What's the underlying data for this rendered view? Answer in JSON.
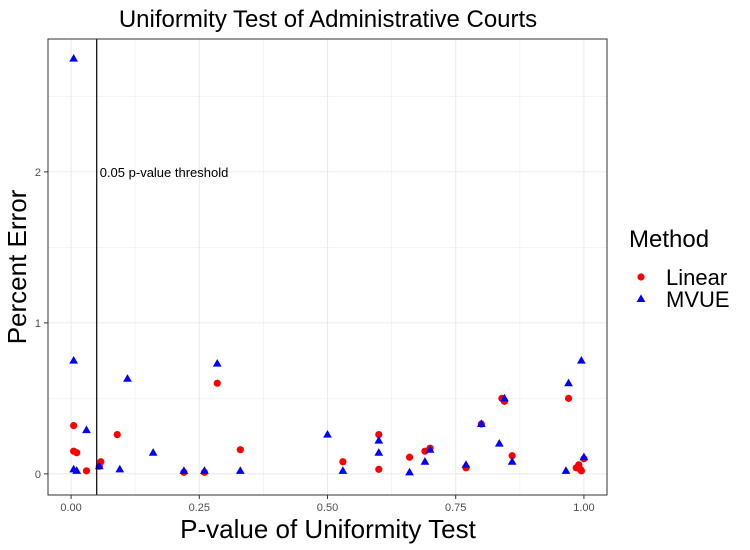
{
  "chart_data": {
    "type": "scatter",
    "title": "Uniformity Test of Administrative Courts",
    "xlabel": "P-value of Uniformity Test",
    "ylabel": "Percent Error",
    "xlim": [
      -0.045,
      1.045
    ],
    "ylim": [
      -0.14,
      2.88
    ],
    "x_ticks": [
      0.0,
      0.25,
      0.5,
      0.75,
      1.0
    ],
    "x_tick_labels": [
      "0.00",
      "0.25",
      "0.50",
      "0.75",
      "1.00"
    ],
    "y_ticks": [
      0,
      1,
      2
    ],
    "y_tick_labels": [
      "0",
      "1",
      "2"
    ],
    "grid": true,
    "legend": {
      "title": "Method",
      "placement": "right"
    },
    "annotation": {
      "text": "0.05 p-value threshold",
      "x": 0.05,
      "y": 2.0
    },
    "vline": {
      "x": 0.05
    },
    "series": [
      {
        "name": "Linear",
        "marker": "circle",
        "color": "#ff0000",
        "points": [
          [
            0.005,
            0.32
          ],
          [
            0.005,
            0.15
          ],
          [
            0.011,
            0.14
          ],
          [
            0.03,
            0.02
          ],
          [
            0.055,
            0.05
          ],
          [
            0.058,
            0.08
          ],
          [
            0.09,
            0.26
          ],
          [
            0.22,
            0.01
          ],
          [
            0.26,
            0.01
          ],
          [
            0.285,
            0.6
          ],
          [
            0.33,
            0.16
          ],
          [
            0.53,
            0.08
          ],
          [
            0.6,
            0.26
          ],
          [
            0.6,
            0.03
          ],
          [
            0.66,
            0.11
          ],
          [
            0.69,
            0.15
          ],
          [
            0.7,
            0.17
          ],
          [
            0.77,
            0.04
          ],
          [
            0.8,
            0.33
          ],
          [
            0.84,
            0.5
          ],
          [
            0.845,
            0.48
          ],
          [
            0.86,
            0.12
          ],
          [
            0.97,
            0.5
          ],
          [
            0.985,
            0.04
          ],
          [
            0.99,
            0.06
          ],
          [
            0.993,
            0.03
          ],
          [
            0.995,
            0.02
          ],
          [
            1.0,
            0.1
          ]
        ]
      },
      {
        "name": "MVUE",
        "marker": "triangle",
        "color": "#0000ff",
        "points": [
          [
            0.005,
            2.75
          ],
          [
            0.005,
            0.75
          ],
          [
            0.005,
            0.03
          ],
          [
            0.011,
            0.02
          ],
          [
            0.03,
            0.29
          ],
          [
            0.055,
            0.05
          ],
          [
            0.095,
            0.03
          ],
          [
            0.11,
            0.63
          ],
          [
            0.16,
            0.14
          ],
          [
            0.22,
            0.02
          ],
          [
            0.26,
            0.02
          ],
          [
            0.285,
            0.73
          ],
          [
            0.33,
            0.02
          ],
          [
            0.5,
            0.26
          ],
          [
            0.53,
            0.02
          ],
          [
            0.6,
            0.22
          ],
          [
            0.6,
            0.14
          ],
          [
            0.66,
            0.01
          ],
          [
            0.69,
            0.08
          ],
          [
            0.7,
            0.16
          ],
          [
            0.77,
            0.06
          ],
          [
            0.8,
            0.33
          ],
          [
            0.835,
            0.2
          ],
          [
            0.845,
            0.5
          ],
          [
            0.86,
            0.08
          ],
          [
            0.965,
            0.02
          ],
          [
            0.97,
            0.6
          ],
          [
            0.995,
            0.75
          ],
          [
            1.0,
            0.11
          ]
        ]
      }
    ]
  }
}
